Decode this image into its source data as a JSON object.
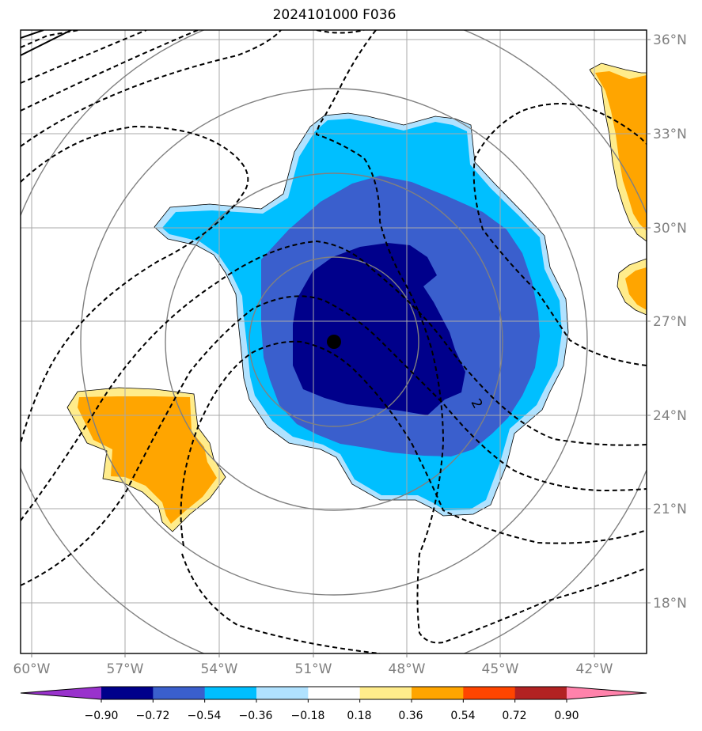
{
  "title": "2024101000 F036",
  "map": {
    "lat_labels": [
      "36°N",
      "33°N",
      "30°N",
      "27°N",
      "24°N",
      "21°N",
      "18°N"
    ],
    "lon_labels": [
      "60°W",
      "57°W",
      "54°W",
      "51°W",
      "48°W",
      "45°W",
      "42°W"
    ],
    "contour_label": "2",
    "storm_center": "black-dot"
  },
  "colorbar": {
    "ticks": [
      "−0.90",
      "−0.72",
      "−0.54",
      "−0.36",
      "−0.18",
      "0.18",
      "0.36",
      "0.54",
      "0.72",
      "0.90"
    ],
    "colors": [
      "#9932cc",
      "#00008b",
      "#3a5fcd",
      "#00bfff",
      "#b0e2ff",
      "#ffffff",
      "#ffec8b",
      "#ffa500",
      "#ff4500",
      "#b22222",
      "#ff82ab"
    ]
  }
}
